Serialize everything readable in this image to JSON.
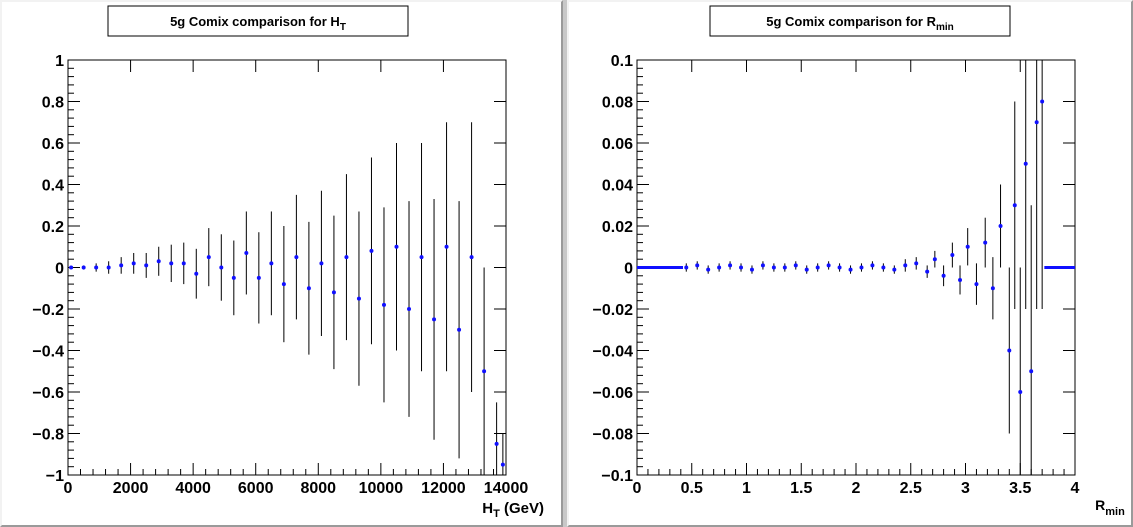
{
  "chart_data": [
    {
      "type": "scatter",
      "title": "5g Comix comparison for H",
      "title_sub": "T",
      "xlabel": "H",
      "xlabel_sub": "T",
      "xlabel_unit": " (GeV)",
      "ylabel": "",
      "xlim": [
        0,
        14000
      ],
      "ylim": [
        -1,
        1
      ],
      "grid": false,
      "xticks": [
        "0",
        "2000",
        "4000",
        "6000",
        "8000",
        "10000",
        "12000",
        "14000"
      ],
      "yticks": [
        "−1",
        "−0.8",
        "−0.6",
        "−0.4",
        "−0.2",
        "0",
        "0.2",
        "0.4",
        "0.6",
        "0.8",
        "1"
      ],
      "x": [
        100,
        500,
        900,
        1300,
        1700,
        2100,
        2500,
        2900,
        3300,
        3700,
        4100,
        4500,
        4900,
        5300,
        5700,
        6100,
        6500,
        6900,
        7300,
        7700,
        8100,
        8500,
        8900,
        9300,
        9700,
        10100,
        10500,
        10900,
        11300,
        11700,
        12100,
        12500,
        12900,
        13300,
        13700,
        13900
      ],
      "y": [
        0.0,
        0.0,
        0.0,
        0.0,
        0.01,
        0.02,
        0.01,
        0.03,
        0.02,
        0.02,
        -0.03,
        0.05,
        0.0,
        -0.05,
        0.07,
        -0.05,
        0.02,
        -0.08,
        0.05,
        -0.1,
        0.02,
        -0.12,
        0.05,
        -0.15,
        0.08,
        -0.18,
        0.1,
        -0.2,
        0.05,
        -0.25,
        0.1,
        -0.3,
        0.05,
        -0.5,
        -0.85,
        -0.95
      ],
      "yerr": [
        0.005,
        0.01,
        0.02,
        0.03,
        0.04,
        0.05,
        0.06,
        0.07,
        0.09,
        0.1,
        0.12,
        0.14,
        0.16,
        0.18,
        0.2,
        0.22,
        0.25,
        0.28,
        0.3,
        0.32,
        0.35,
        0.37,
        0.4,
        0.42,
        0.45,
        0.47,
        0.5,
        0.52,
        0.55,
        0.58,
        0.6,
        0.62,
        0.65,
        0.5,
        0.2,
        0.15
      ],
      "series_color": "#1010ff",
      "error_color": "#000000"
    },
    {
      "type": "scatter",
      "title": "5g Comix comparison for R",
      "title_sub": "min",
      "xlabel": "R",
      "xlabel_sub": "min",
      "xlabel_unit": "",
      "ylabel": "",
      "xlim": [
        0,
        4
      ],
      "ylim": [
        -0.1,
        0.1
      ],
      "grid": false,
      "xticks": [
        "0",
        "0.5",
        "1",
        "1.5",
        "2",
        "2.5",
        "3",
        "3.5",
        "4"
      ],
      "yticks": [
        "−0.1",
        "−0.08",
        "−0.06",
        "−0.04",
        "−0.02",
        "0",
        "0.02",
        "0.04",
        "0.06",
        "0.08",
        "0.1"
      ],
      "x": [
        0.45,
        0.55,
        0.65,
        0.75,
        0.85,
        0.95,
        1.05,
        1.15,
        1.25,
        1.35,
        1.45,
        1.55,
        1.65,
        1.75,
        1.85,
        1.95,
        2.05,
        2.15,
        2.25,
        2.35,
        2.45,
        2.55,
        2.65,
        2.72,
        2.8,
        2.88,
        2.95,
        3.02,
        3.1,
        3.18,
        3.25,
        3.32,
        3.4,
        3.45,
        3.5,
        3.55,
        3.6,
        3.65,
        3.7
      ],
      "y": [
        0.0,
        0.001,
        -0.001,
        0.0,
        0.001,
        0.0,
        -0.001,
        0.001,
        0.0,
        0.0,
        0.001,
        -0.001,
        0.0,
        0.001,
        0.0,
        -0.001,
        0.0,
        0.001,
        0.0,
        -0.001,
        0.001,
        0.002,
        -0.002,
        0.004,
        -0.004,
        0.006,
        -0.006,
        0.01,
        -0.008,
        0.012,
        -0.01,
        0.02,
        -0.04,
        0.03,
        -0.06,
        0.05,
        -0.05,
        0.07,
        0.08
      ],
      "yerr": [
        0.002,
        0.002,
        0.002,
        0.002,
        0.002,
        0.002,
        0.002,
        0.002,
        0.002,
        0.002,
        0.002,
        0.002,
        0.002,
        0.002,
        0.002,
        0.002,
        0.002,
        0.002,
        0.002,
        0.002,
        0.003,
        0.003,
        0.003,
        0.004,
        0.005,
        0.006,
        0.007,
        0.009,
        0.01,
        0.012,
        0.015,
        0.02,
        0.04,
        0.05,
        0.06,
        0.07,
        0.08,
        0.09,
        0.1
      ],
      "flat_segments": [
        [
          0,
          0.42
        ],
        [
          3.72,
          4.0
        ]
      ],
      "series_color": "#1010ff",
      "error_color": "#000000"
    }
  ]
}
